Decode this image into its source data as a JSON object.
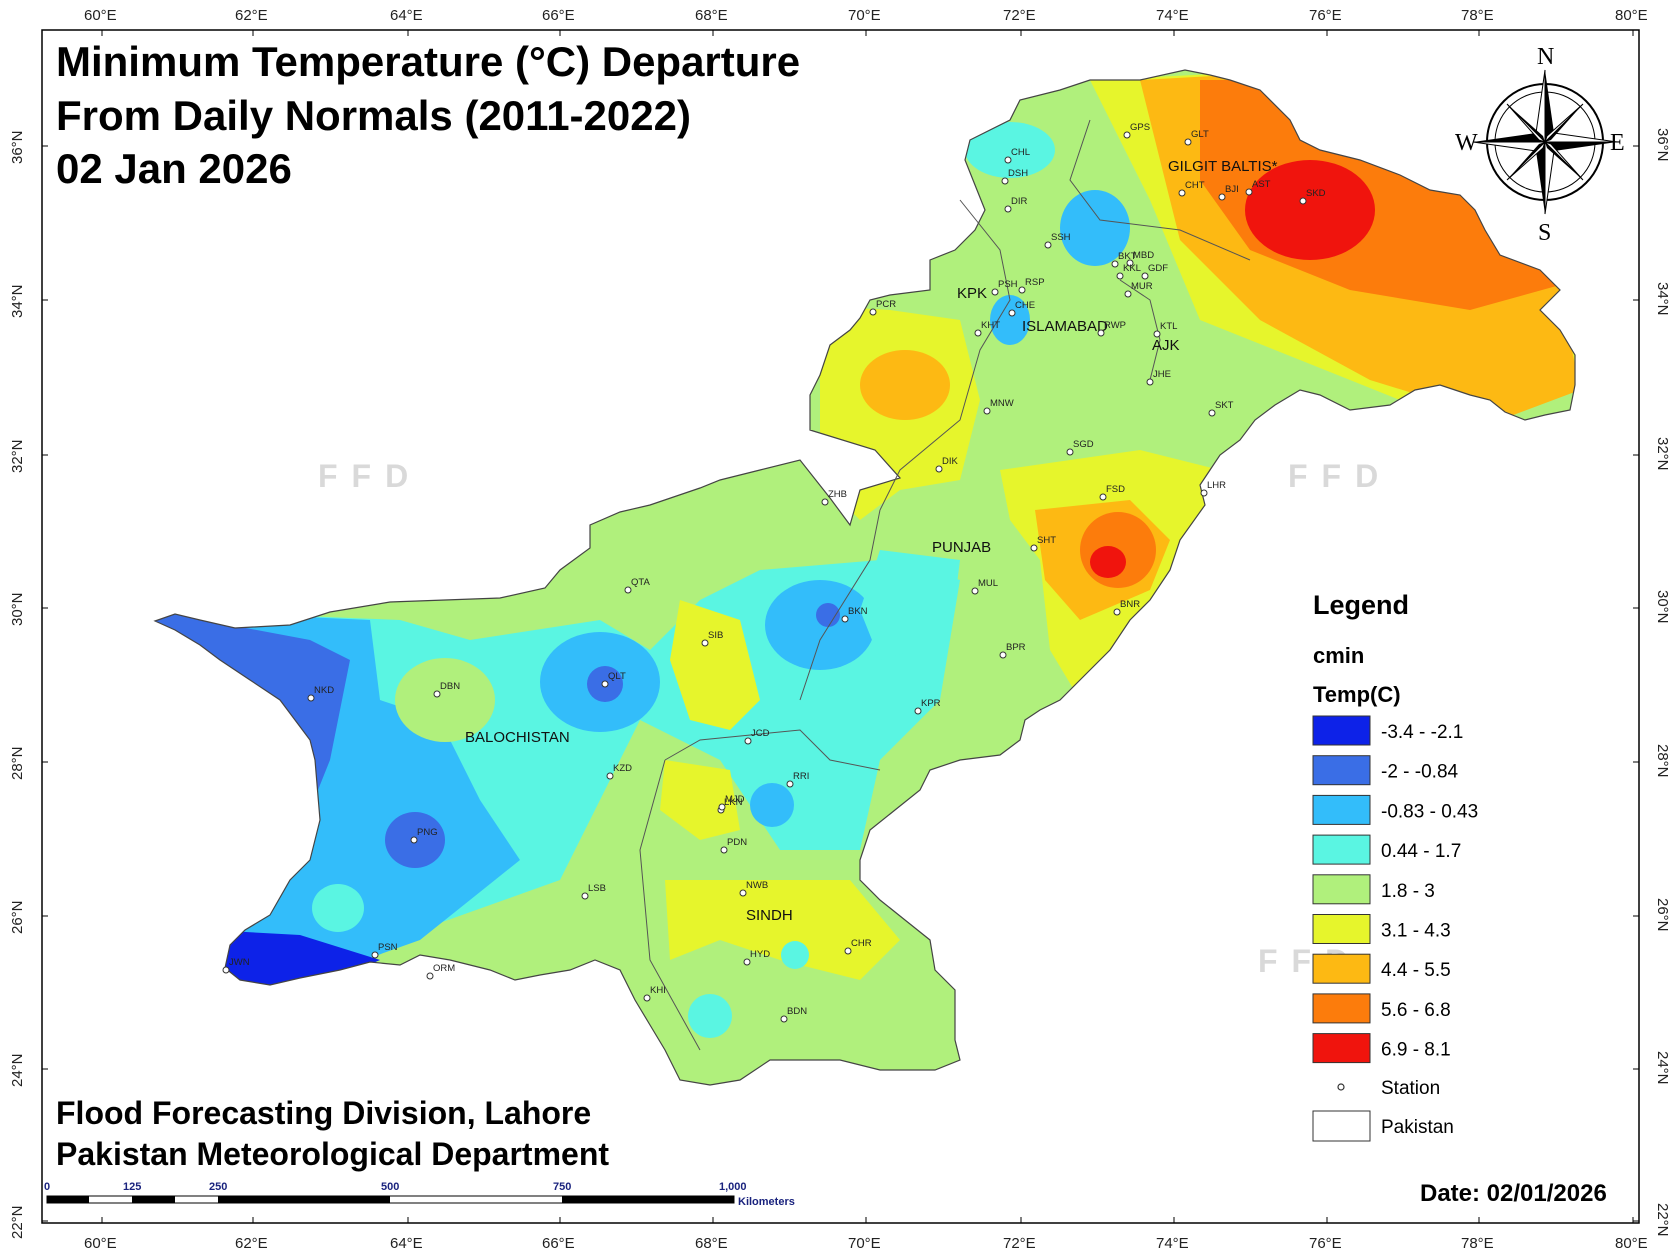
{
  "title_lines": [
    "Minimum Temperature (°C) Departure",
    "From Daily Normals (2011-2022)",
    "02 Jan 2026"
  ],
  "footer_lines": [
    "Flood Forecasting Division, Lahore",
    "Pakistan Meteorological Department"
  ],
  "date_label": "Date: 02/01/2026",
  "watermark": "FFD",
  "lon_ticks": [
    "60°E",
    "62°E",
    "64°E",
    "66°E",
    "68°E",
    "70°E",
    "72°E",
    "74°E",
    "76°E",
    "78°E",
    "80°E"
  ],
  "lat_ticks": [
    "36°N",
    "34°N",
    "32°N",
    "30°N",
    "28°N",
    "26°N",
    "24°N",
    "22°N"
  ],
  "compass": {
    "n": "N",
    "s": "S",
    "e": "E",
    "w": "W"
  },
  "regions": [
    "GILGIT BALTIS*",
    "KPK",
    "ISLAMABAD",
    "AJK",
    "PUNJAB",
    "BALOCHISTAN",
    "SINDH"
  ],
  "stations": [
    "GPS",
    "GLT",
    "CHT",
    "BJI",
    "AST",
    "SKD",
    "CHL",
    "DSH",
    "DIR",
    "SSH",
    "BKT",
    "MBD",
    "KKL",
    "GDF",
    "MUR",
    "PSH",
    "RSP",
    "CHE",
    "KHT",
    "RWP",
    "KTL",
    "PCR",
    "JHE",
    "MNW",
    "SKT",
    "SGD",
    "DIK",
    "LHR",
    "ZHB",
    "FSD",
    "SHT",
    "QTA",
    "MUL",
    "BKN",
    "BNR",
    "SIB",
    "BPR",
    "DBN",
    "NKD",
    "QLT",
    "KPR",
    "JCD",
    "KZD",
    "RRI",
    "LKN",
    "MJD",
    "PNG",
    "PDN",
    "LSB",
    "NWB",
    "CHR",
    "HYD",
    "ORM",
    "KHI",
    "BDN",
    "JWN",
    "PSN"
  ],
  "legend": {
    "title": "Legend",
    "layer": "cmin",
    "field": "Temp(C)",
    "classes": [
      {
        "label": "-3.4 - -2.1",
        "color": "#0d22e8"
      },
      {
        "label": "-2 - -0.84",
        "color": "#3a6ee6"
      },
      {
        "label": "-0.83 - 0.43",
        "color": "#33bdfa"
      },
      {
        "label": "0.44 - 1.7",
        "color": "#5af5e2"
      },
      {
        "label": "1.8 - 3",
        "color": "#b0f07c"
      },
      {
        "label": "3.1 - 4.3",
        "color": "#e6f52c"
      },
      {
        "label": "4.4 - 5.5",
        "color": "#fdb913"
      },
      {
        "label": "5.6 - 6.8",
        "color": "#fc7c0c"
      },
      {
        "label": "6.9 - 8.1",
        "color": "#f0140d"
      }
    ],
    "station_label": "Station",
    "boundary_label": "Pakistan"
  },
  "scale_bar": {
    "ticks": [
      "0",
      "125",
      "250",
      "500",
      "750",
      "1,000"
    ],
    "unit": "Kilometers"
  }
}
